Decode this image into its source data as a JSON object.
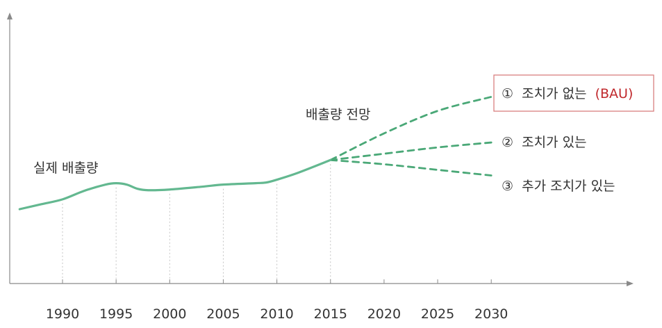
{
  "chart_data": {
    "type": "line",
    "x_ticks": [
      "1990",
      "1995",
      "2000",
      "2005",
      "2010",
      "2015",
      "2020",
      "2025",
      "2030"
    ],
    "xlim": [
      1986,
      2043
    ],
    "grid": "vertical dotted lines at 1990–2015",
    "actual": {
      "label": "실제 배출량",
      "style": "solid",
      "x": [
        1986,
        1988,
        1990,
        1992,
        1994,
        1995,
        1996,
        1997,
        1998,
        2000,
        2003,
        2005,
        2008,
        2009,
        2010,
        2012,
        2015
      ],
      "y": [
        0.0,
        0.7,
        1.4,
        2.6,
        3.5,
        3.7,
        3.5,
        2.9,
        2.7,
        2.8,
        3.2,
        3.5,
        3.7,
        3.8,
        4.2,
        5.2,
        7.0
      ]
    },
    "projection_label": "배출량 전망",
    "scenarios": [
      {
        "label_num": "①",
        "label_text": "조치가 없는",
        "label_extra": "(BAU)",
        "style": "dashed",
        "x": [
          2015,
          2020,
          2025,
          2030
        ],
        "y": [
          7.0,
          10.8,
          14.0,
          16.0
        ]
      },
      {
        "label_num": "②",
        "label_text": "조치가 있는",
        "label_extra": "",
        "style": "dashed",
        "x": [
          2015,
          2020,
          2025,
          2030
        ],
        "y": [
          7.0,
          7.9,
          8.8,
          9.5
        ]
      },
      {
        "label_num": "③",
        "label_text": "추가 조치가 있는",
        "label_extra": "",
        "style": "dashed",
        "x": [
          2015,
          2020,
          2025,
          2030
        ],
        "y": [
          7.0,
          6.4,
          5.6,
          4.8
        ]
      }
    ]
  },
  "colors": {
    "line": "#63b890",
    "dashed": "#4aa877",
    "axis": "#8a8a8a",
    "grid": "#c4c4c4",
    "bau_box": "#d98080",
    "bau_text": "#c0282c",
    "text": "#333333"
  }
}
